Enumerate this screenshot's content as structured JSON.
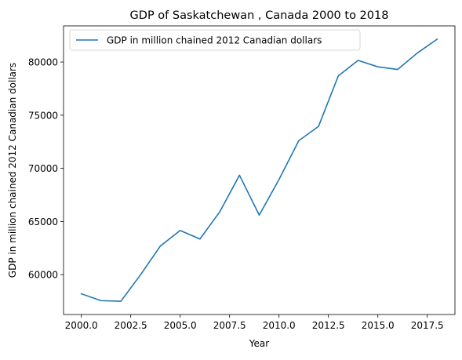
{
  "chart_data": {
    "type": "line",
    "title": "GDP of Saskatchewan , Canada 2000 to 2018",
    "xlabel": "Year",
    "ylabel": "GDP in million chained 2012 Canadian dollars",
    "xlim": [
      1999.1,
      2018.9
    ],
    "ylim": [
      56250,
      83400
    ],
    "x_ticks": [
      2000,
      2002.5,
      2005,
      2007.5,
      2010,
      2012.5,
      2015,
      2017.5
    ],
    "x_tick_labels": [
      "2000.0",
      "2002.5",
      "2005.0",
      "2007.5",
      "2010.0",
      "2012.5",
      "2015.0",
      "2017.5"
    ],
    "y_ticks": [
      60000,
      65000,
      70000,
      75000,
      80000
    ],
    "y_tick_labels": [
      "60000",
      "65000",
      "70000",
      "75000",
      "80000"
    ],
    "grid": false,
    "legend_position": "top-left",
    "color": "#1f77b4",
    "series": [
      {
        "name": "GDP in million chained 2012 Canadian dollars",
        "x": [
          2000,
          2001,
          2002,
          2003,
          2004,
          2005,
          2006,
          2007,
          2008,
          2009,
          2010,
          2011,
          2012,
          2013,
          2014,
          2015,
          2016,
          2017,
          2018
        ],
        "values": [
          58200,
          57550,
          57500,
          60000,
          62700,
          64150,
          63350,
          65900,
          69350,
          65600,
          68950,
          72600,
          73950,
          78700,
          80150,
          79550,
          79300,
          80850,
          82150
        ]
      }
    ]
  }
}
